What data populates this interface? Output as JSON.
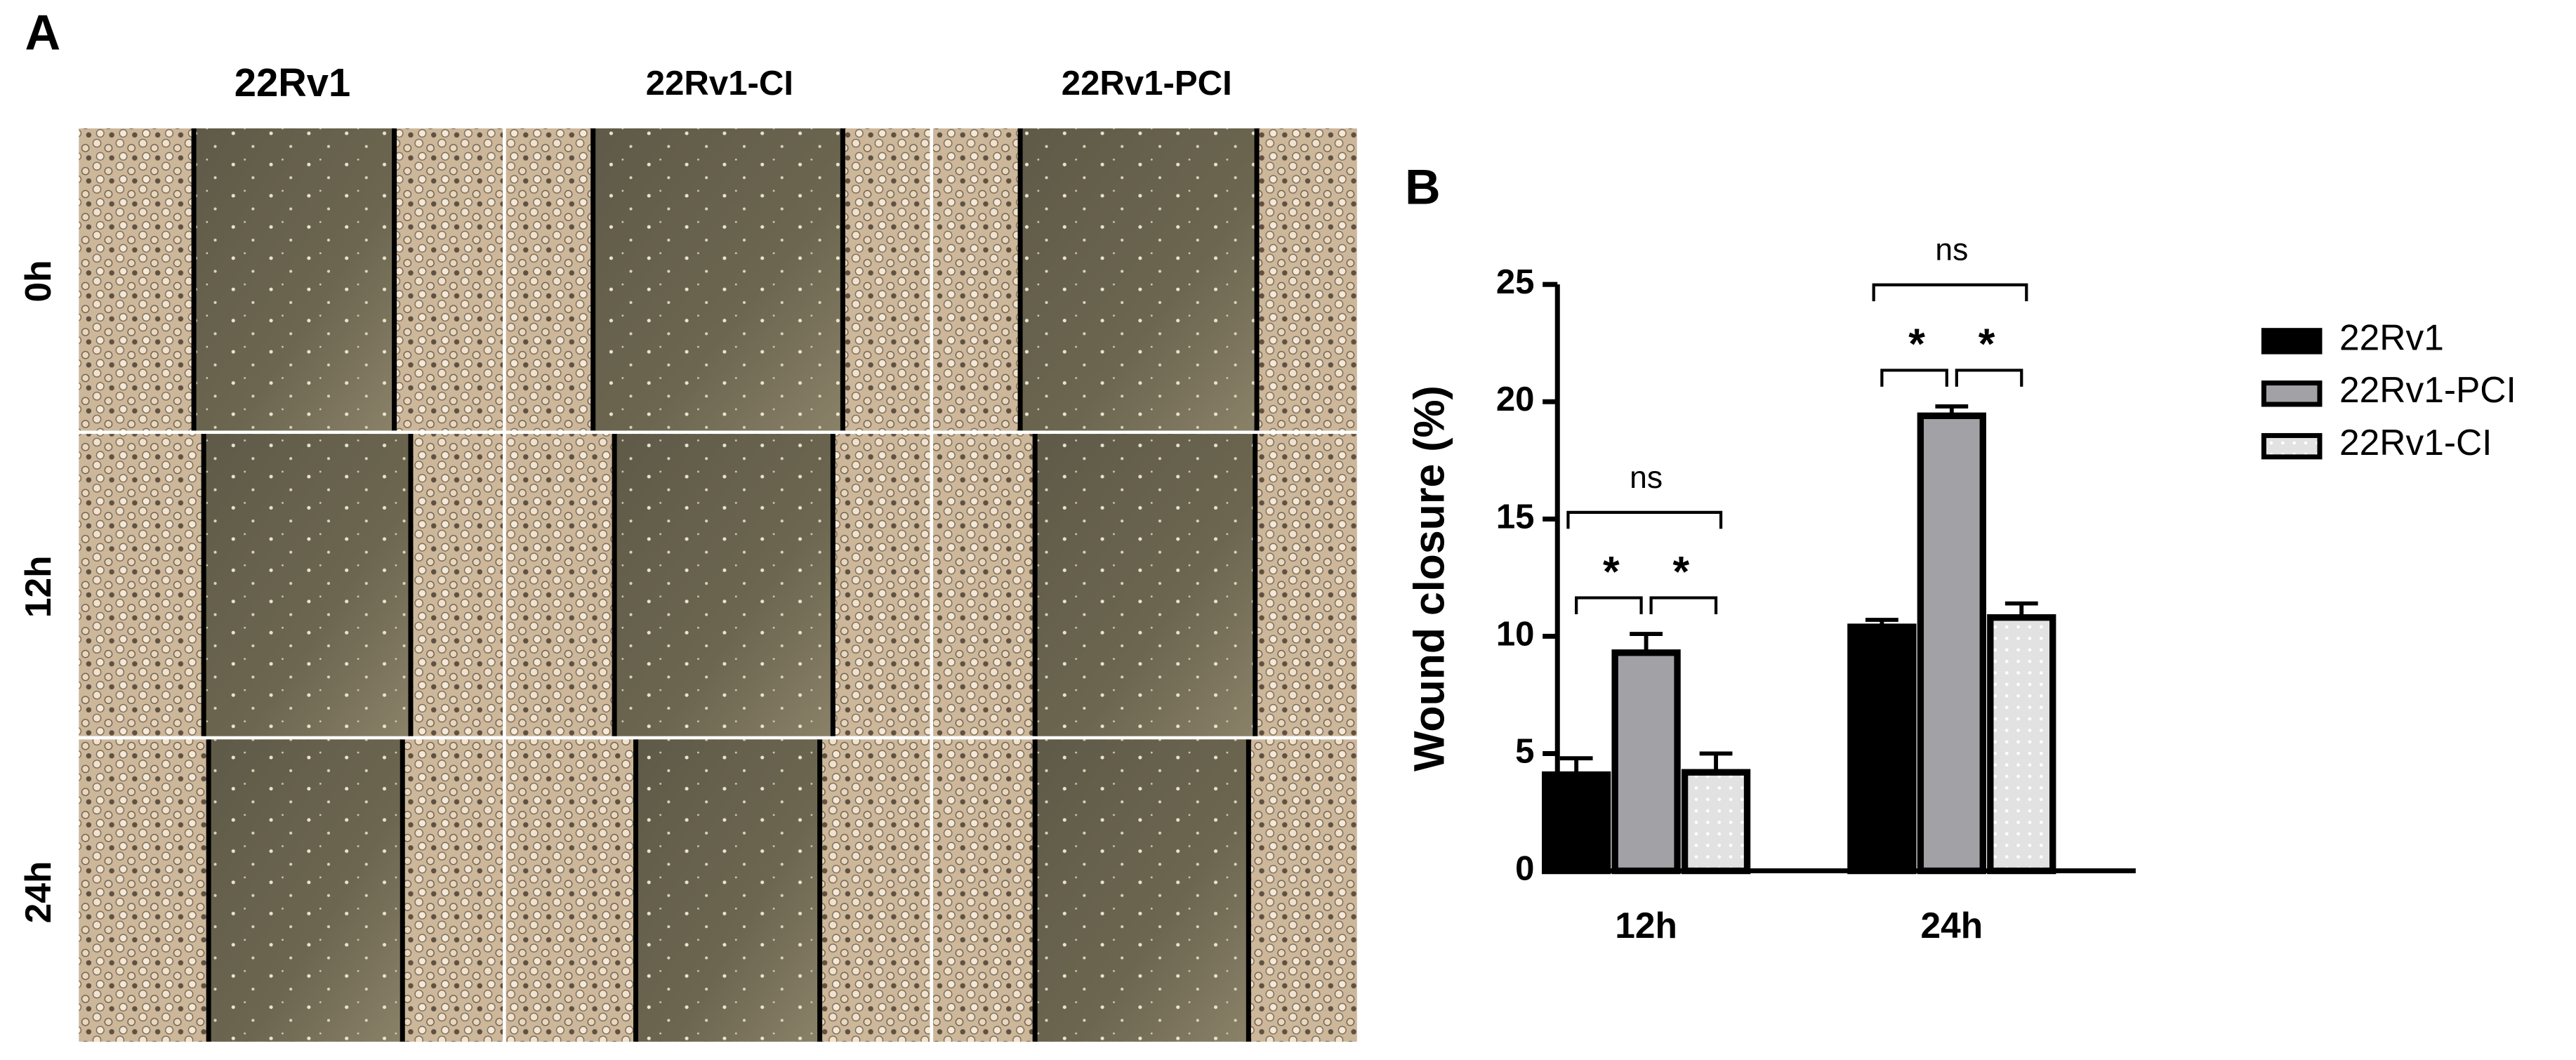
{
  "panel_a": {
    "label": "A",
    "columns": [
      "22Rv1",
      "22Rv1-CI",
      "22Rv1-PCI"
    ],
    "rows": [
      "0h",
      "12h",
      "24h"
    ]
  },
  "chart_data": {
    "type": "bar",
    "panel_label": "B",
    "y_label": "Wound closure (%)",
    "categories": [
      "12h",
      "24h"
    ],
    "series": [
      {
        "name": "22Rv1",
        "color": "#000000",
        "values": [
          4.1,
          10.4
        ],
        "errors": [
          0.7,
          0.3
        ]
      },
      {
        "name": "22Rv1-PCI",
        "color": "#a2a2a6",
        "values": [
          9.3,
          19.4
        ],
        "errors": [
          0.8,
          0.4
        ]
      },
      {
        "name": "22Rv1-CI",
        "color": "#e2e2e2",
        "values": [
          4.2,
          10.8
        ],
        "errors": [
          0.8,
          0.6
        ]
      }
    ],
    "annotations": [
      [
        "*",
        "*",
        "ns"
      ],
      [
        "*",
        "*",
        "ns"
      ]
    ],
    "ylim": [
      0,
      25
    ],
    "yticks": [
      0,
      5,
      10,
      15,
      20,
      25
    ],
    "grid": false,
    "legend": "right"
  }
}
